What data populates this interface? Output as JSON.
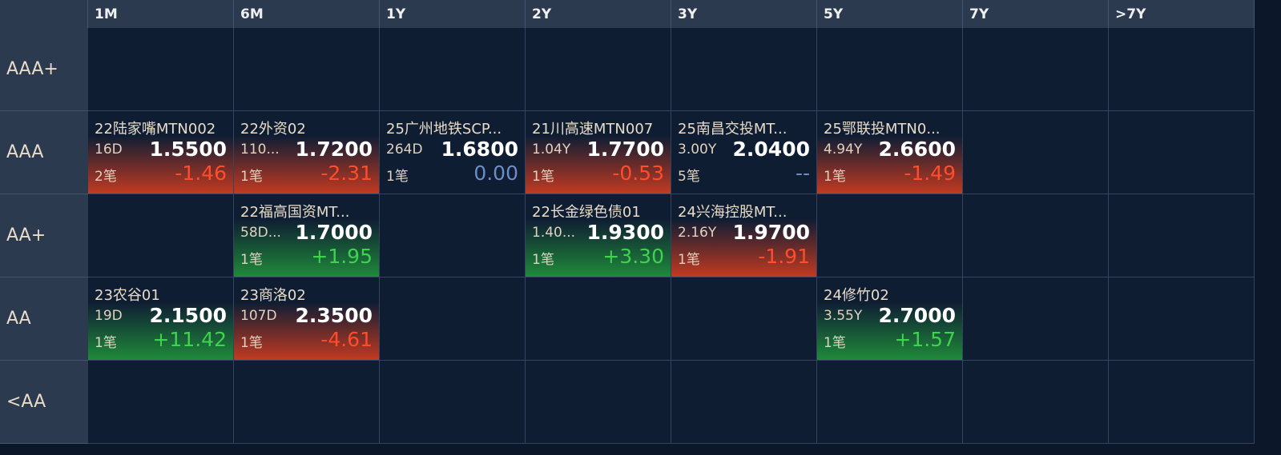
{
  "columns": [
    "1M",
    "6M",
    "1Y",
    "2Y",
    "3Y",
    "5Y",
    "7Y",
    ">7Y"
  ],
  "rows": [
    {
      "label": "AAA+",
      "cells": [
        null,
        null,
        null,
        null,
        null,
        null,
        null,
        null
      ]
    },
    {
      "label": "AAA",
      "cells": [
        {
          "name": "22陆家嘴MTN002",
          "term": "16D",
          "price": "1.5500",
          "count": "2笔",
          "change": "-1.46"
        },
        {
          "name": "22外资02",
          "term": "110...",
          "price": "1.7200",
          "count": "1笔",
          "change": "-2.31"
        },
        {
          "name": "25广州地铁SCP...",
          "term": "264D",
          "price": "1.6800",
          "count": "1笔",
          "change": "0.00"
        },
        {
          "name": "21川高速MTN007",
          "term": "1.04Y",
          "price": "1.7700",
          "count": "1笔",
          "change": "-0.53"
        },
        {
          "name": "25南昌交投MT...",
          "term": "3.00Y",
          "price": "2.0400",
          "count": "5笔",
          "change": "--"
        },
        {
          "name": "25鄂联投MTN0...",
          "term": "4.94Y",
          "price": "2.6600",
          "count": "1笔",
          "change": "-1.49"
        },
        null,
        null
      ]
    },
    {
      "label": "AA+",
      "cells": [
        null,
        {
          "name": "22福高国资MT...",
          "term": "58D...",
          "price": "1.7000",
          "count": "1笔",
          "change": "+1.95"
        },
        null,
        {
          "name": "22长金绿色债01",
          "term": "1.40...",
          "price": "1.9300",
          "count": "1笔",
          "change": "+3.30"
        },
        {
          "name": "24兴海控股MT...",
          "term": "2.16Y",
          "price": "1.9700",
          "count": "1笔",
          "change": "-1.91"
        },
        null,
        null,
        null
      ]
    },
    {
      "label": "AA",
      "cells": [
        {
          "name": "23农谷01",
          "term": "19D",
          "price": "2.1500",
          "count": "1笔",
          "change": "+11.42"
        },
        {
          "name": "23商洛02",
          "term": "107D",
          "price": "2.3500",
          "count": "1笔",
          "change": "-4.61"
        },
        null,
        null,
        null,
        {
          "name": "24修竹02",
          "term": "3.55Y",
          "price": "2.7000",
          "count": "1笔",
          "change": "+1.57"
        },
        null,
        null
      ]
    },
    {
      "label": "<AA",
      "cells": [
        null,
        null,
        null,
        null,
        null,
        null,
        null,
        null
      ]
    }
  ]
}
